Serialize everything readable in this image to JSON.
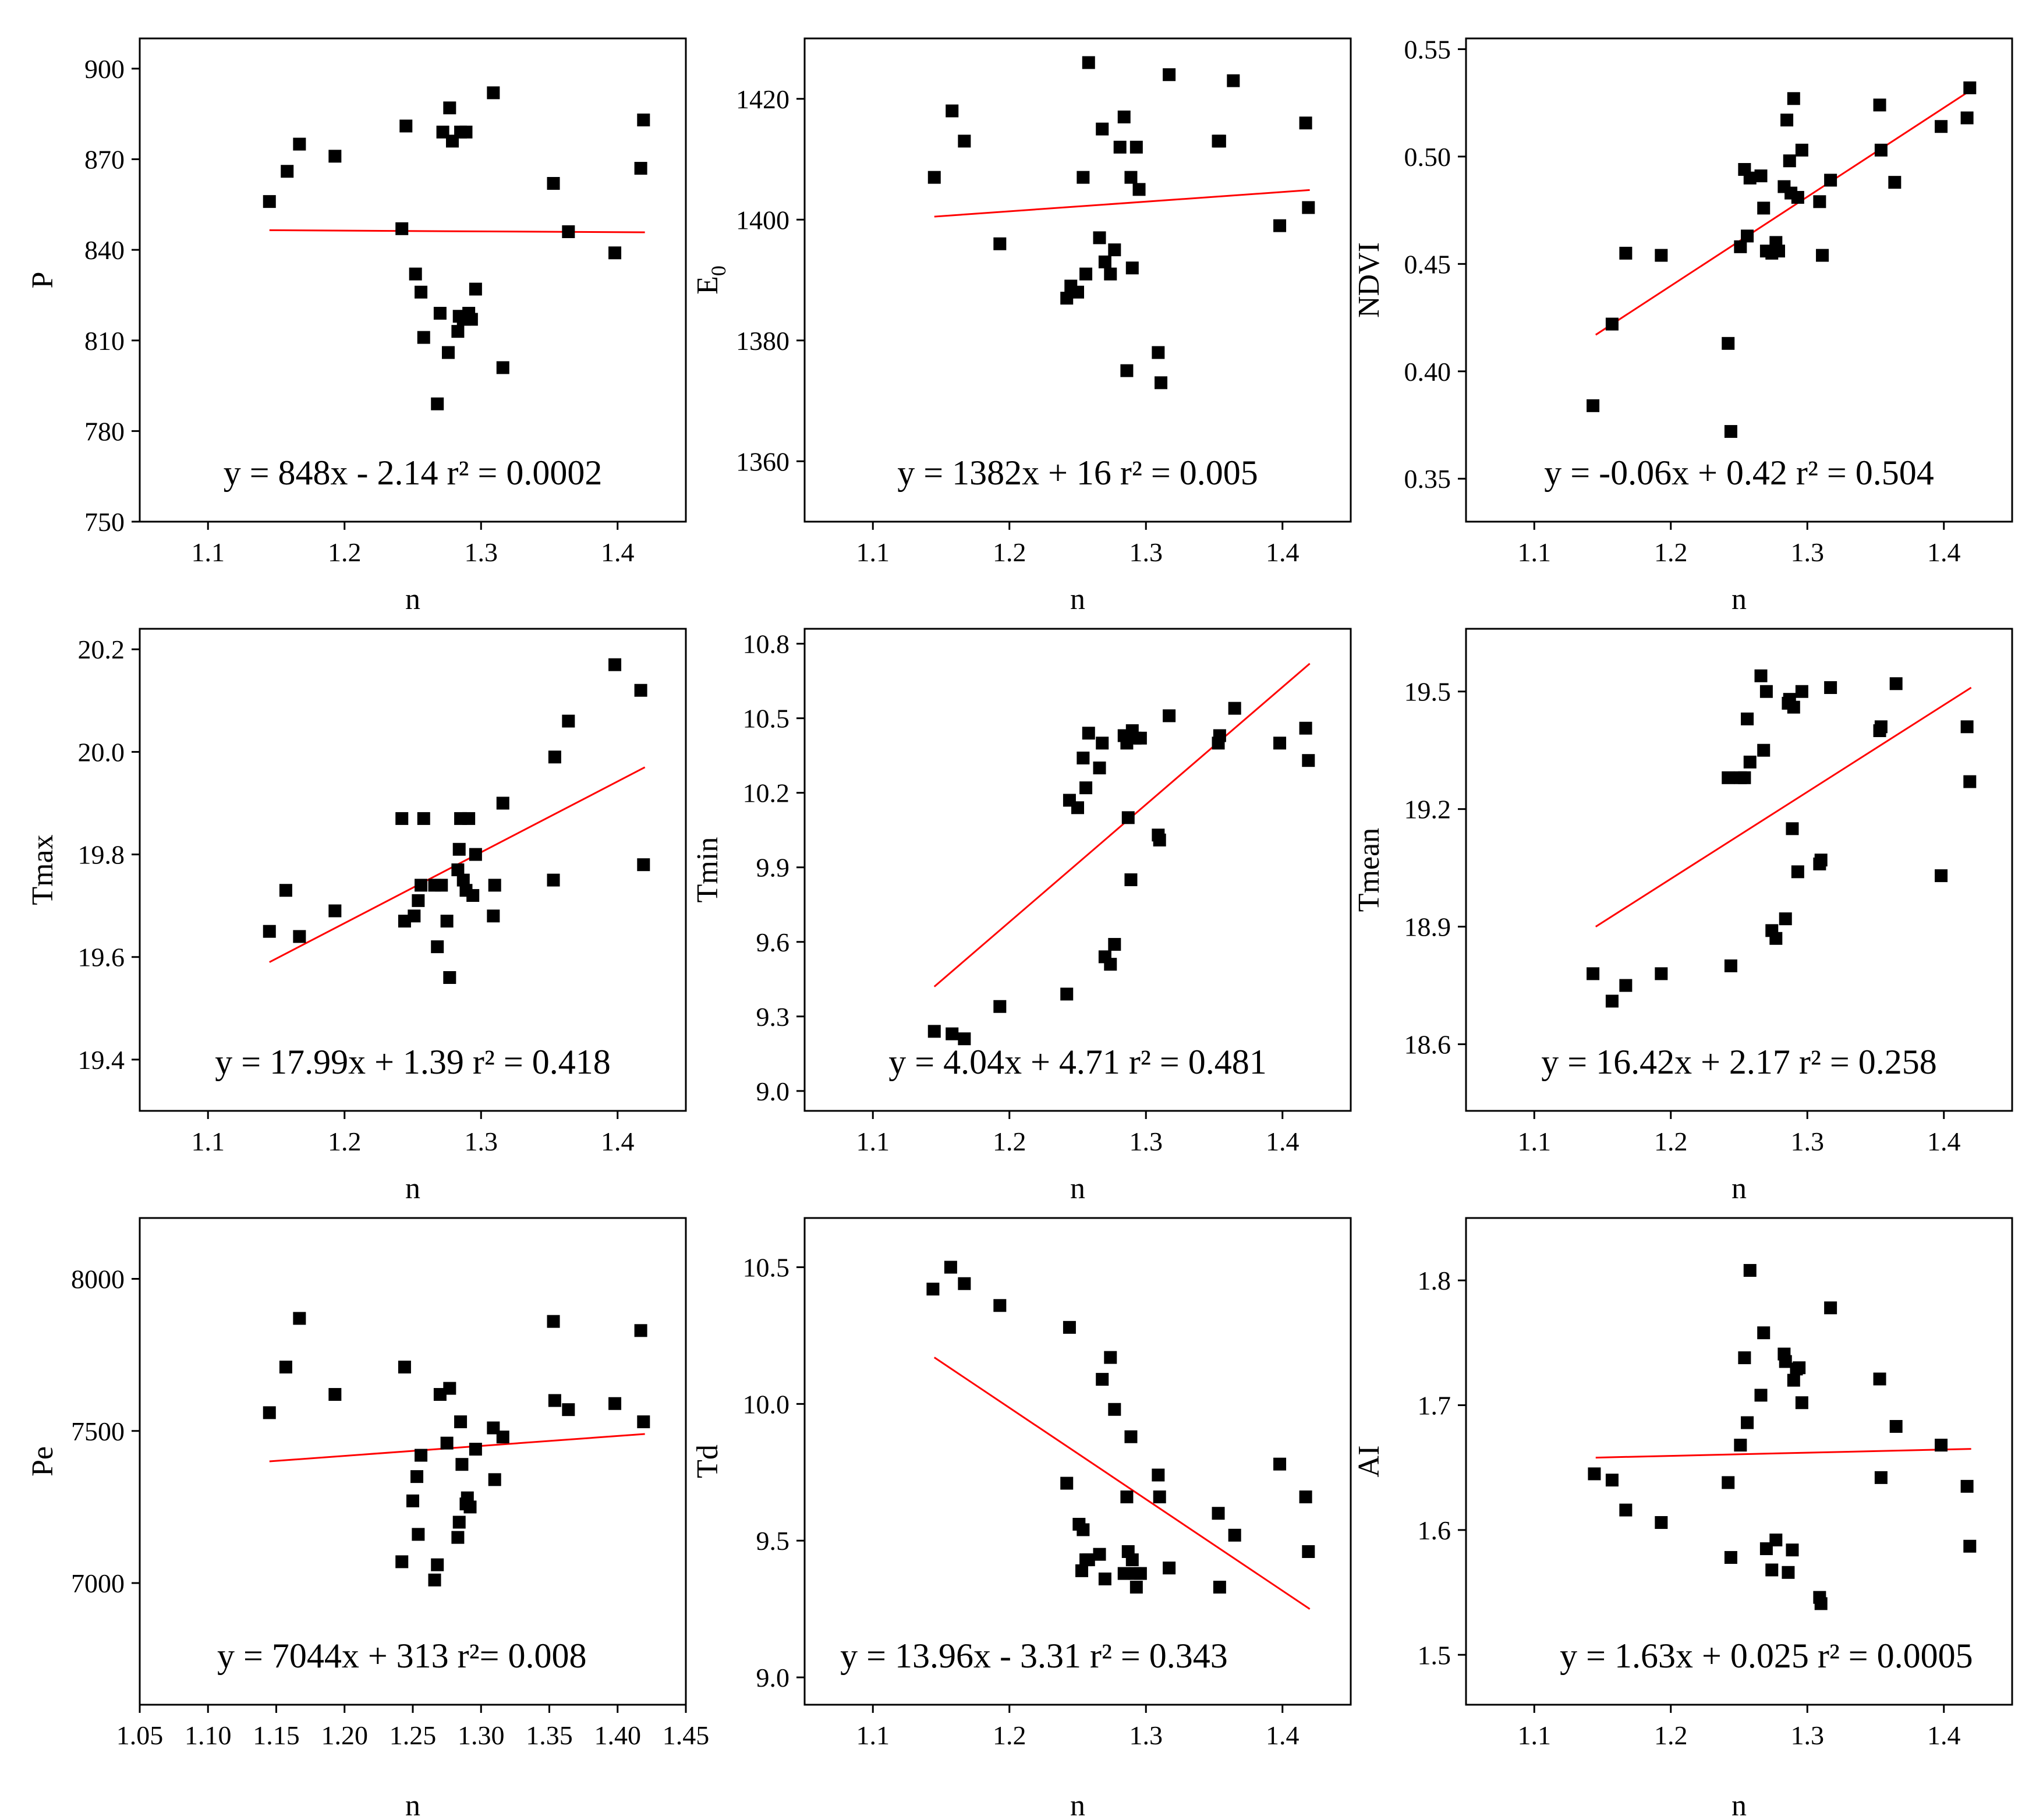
{
  "chart_data": [
    {
      "type": "scatter",
      "xlabel": "n",
      "ylabel": "P",
      "xlim": [
        1.05,
        1.45
      ],
      "ylim": [
        750,
        910
      ],
      "xticks": [
        "1.1",
        "1.2",
        "1.3",
        "1.4"
      ],
      "yticks": [
        "750",
        "780",
        "810",
        "840",
        "870",
        "900"
      ],
      "equation": "y = 848x - 2.14 r² = 0.0002",
      "trend": {
        "x": [
          1.145,
          1.42
        ],
        "y": [
          846.5,
          845.8
        ]
      },
      "points": {
        "x": [
          1.145,
          1.158,
          1.167,
          1.193,
          1.242,
          1.245,
          1.252,
          1.256,
          1.258,
          1.268,
          1.27,
          1.272,
          1.276,
          1.277,
          1.279,
          1.283,
          1.284,
          1.285,
          1.287,
          1.288,
          1.289,
          1.291,
          1.293,
          1.296,
          1.309,
          1.316,
          1.353,
          1.364,
          1.398,
          1.417,
          1.419
        ],
        "y": [
          856,
          866,
          875,
          871,
          847,
          881,
          832,
          826,
          811,
          789,
          819,
          879,
          806,
          887,
          876,
          813,
          818,
          879,
          817,
          817,
          879,
          819,
          817,
          827,
          892,
          801,
          862,
          846,
          839,
          867,
          883
        ]
      }
    },
    {
      "type": "scatter",
      "xlabel": "n",
      "ylabel": "E0",
      "ylabel_subscript": "0",
      "ylabel_main": "E",
      "xlim": [
        1.05,
        1.45
      ],
      "ylim": [
        1350,
        1430
      ],
      "xticks": [
        "1.1",
        "1.2",
        "1.3",
        "1.4"
      ],
      "yticks": [
        "1360",
        "1380",
        "1400",
        "1420"
      ],
      "equation": "y = 1382x + 16 r² = 0.005",
      "trend": {
        "x": [
          1.145,
          1.42
        ],
        "y": [
          1400.5,
          1404.9
        ]
      },
      "points": {
        "x": [
          1.145,
          1.158,
          1.167,
          1.193,
          1.242,
          1.245,
          1.25,
          1.254,
          1.256,
          1.258,
          1.266,
          1.268,
          1.27,
          1.274,
          1.277,
          1.281,
          1.284,
          1.286,
          1.289,
          1.29,
          1.293,
          1.295,
          1.309,
          1.311,
          1.317,
          1.353,
          1.354,
          1.364,
          1.398,
          1.417,
          1.419
        ],
        "y": [
          1407,
          1418,
          1413,
          1396,
          1387,
          1389,
          1388,
          1407,
          1391,
          1426,
          1397,
          1415,
          1393,
          1391,
          1395,
          1412,
          1417,
          1375,
          1407,
          1392,
          1412,
          1405,
          1378,
          1373,
          1424,
          1413,
          1413,
          1423,
          1399,
          1416,
          1402
        ]
      }
    },
    {
      "type": "scatter",
      "xlabel": "n",
      "ylabel": "NDVI",
      "xlim": [
        1.05,
        1.45
      ],
      "ylim": [
        0.33,
        0.555
      ],
      "xticks": [
        "1.1",
        "1.2",
        "1.3",
        "1.4"
      ],
      "yticks": [
        "0.35",
        "0.40",
        "0.45",
        "0.50",
        "0.55"
      ],
      "equation": "y = -0.06x + 0.42 r² = 0.504",
      "trend": {
        "x": [
          1.145,
          1.42
        ],
        "y": [
          0.417,
          0.531
        ]
      },
      "points": {
        "x": [
          1.143,
          1.157,
          1.167,
          1.193,
          1.242,
          1.244,
          1.251,
          1.254,
          1.256,
          1.258,
          1.266,
          1.268,
          1.27,
          1.274,
          1.277,
          1.279,
          1.283,
          1.285,
          1.287,
          1.288,
          1.29,
          1.293,
          1.296,
          1.309,
          1.311,
          1.317,
          1.353,
          1.354,
          1.364,
          1.398,
          1.417,
          1.419
        ],
        "y": [
          0.384,
          0.422,
          0.455,
          0.454,
          0.413,
          0.372,
          0.458,
          0.494,
          0.463,
          0.49,
          0.491,
          0.476,
          0.456,
          0.455,
          0.46,
          0.456,
          0.486,
          0.517,
          0.498,
          0.483,
          0.527,
          0.481,
          0.503,
          0.479,
          0.454,
          0.489,
          0.524,
          0.503,
          0.488,
          0.514,
          0.518,
          0.532
        ]
      }
    },
    {
      "type": "scatter",
      "xlabel": "n",
      "ylabel": "Tmax",
      "xlim": [
        1.05,
        1.45
      ],
      "ylim": [
        19.3,
        20.24
      ],
      "xticks": [
        "1.1",
        "1.2",
        "1.3",
        "1.4"
      ],
      "yticks": [
        "19.4",
        "19.6",
        "19.8",
        "20.0",
        "20.2"
      ],
      "equation": "y = 17.99x + 1.39 r² = 0.418",
      "trend": {
        "x": [
          1.145,
          1.42
        ],
        "y": [
          19.59,
          19.97
        ]
      },
      "points": {
        "x": [
          1.145,
          1.157,
          1.167,
          1.193,
          1.242,
          1.244,
          1.251,
          1.254,
          1.256,
          1.258,
          1.266,
          1.268,
          1.271,
          1.275,
          1.277,
          1.283,
          1.284,
          1.285,
          1.287,
          1.289,
          1.291,
          1.294,
          1.296,
          1.309,
          1.31,
          1.316,
          1.353,
          1.354,
          1.364,
          1.398,
          1.417,
          1.419
        ],
        "y": [
          19.65,
          19.73,
          19.64,
          19.69,
          19.87,
          19.67,
          19.68,
          19.71,
          19.74,
          19.87,
          19.74,
          19.62,
          19.74,
          19.67,
          19.56,
          19.77,
          19.81,
          19.87,
          19.75,
          19.73,
          19.87,
          19.72,
          19.8,
          19.68,
          19.74,
          19.9,
          19.75,
          19.99,
          20.06,
          20.17,
          20.12,
          19.78
        ]
      }
    },
    {
      "type": "scatter",
      "xlabel": "n",
      "ylabel": "Tmin",
      "xlim": [
        1.05,
        1.45
      ],
      "ylim": [
        8.92,
        10.86
      ],
      "xticks": [
        "1.1",
        "1.2",
        "1.3",
        "1.4"
      ],
      "yticks": [
        "9.0",
        "9.3",
        "9.6",
        "9.9",
        "10.2",
        "10.5",
        "10.8"
      ],
      "equation": "y = 4.04x + 4.71 r² = 0.481",
      "trend": {
        "x": [
          1.145,
          1.42
        ],
        "y": [
          9.42,
          10.72
        ]
      },
      "points": {
        "x": [
          1.145,
          1.158,
          1.167,
          1.193,
          1.242,
          1.244,
          1.25,
          1.254,
          1.256,
          1.258,
          1.266,
          1.268,
          1.27,
          1.274,
          1.277,
          1.284,
          1.286,
          1.287,
          1.289,
          1.29,
          1.292,
          1.296,
          1.309,
          1.31,
          1.317,
          1.353,
          1.354,
          1.365,
          1.398,
          1.417,
          1.419
        ],
        "y": [
          9.24,
          9.23,
          9.21,
          9.34,
          9.39,
          10.17,
          10.14,
          10.34,
          10.22,
          10.44,
          10.3,
          10.4,
          9.54,
          9.51,
          9.59,
          10.43,
          10.4,
          10.1,
          9.85,
          10.45,
          10.42,
          10.42,
          10.03,
          10.01,
          10.51,
          10.4,
          10.43,
          10.54,
          10.4,
          10.46,
          10.33
        ]
      }
    },
    {
      "type": "scatter",
      "xlabel": "n",
      "ylabel": "Tmean",
      "xlim": [
        1.05,
        1.45
      ],
      "ylim": [
        18.43,
        19.66
      ],
      "xticks": [
        "1.1",
        "1.2",
        "1.3",
        "1.4"
      ],
      "yticks": [
        "18.6",
        "18.9",
        "19.2",
        "19.5"
      ],
      "equation": "y = 16.42x + 2.17 r² = 0.258",
      "trend": {
        "x": [
          1.145,
          1.42
        ],
        "y": [
          18.9,
          19.51
        ]
      },
      "points": {
        "x": [
          1.143,
          1.157,
          1.167,
          1.193,
          1.242,
          1.244,
          1.251,
          1.254,
          1.256,
          1.258,
          1.266,
          1.268,
          1.27,
          1.274,
          1.277,
          1.284,
          1.286,
          1.287,
          1.289,
          1.29,
          1.293,
          1.296,
          1.309,
          1.31,
          1.317,
          1.353,
          1.354,
          1.365,
          1.398,
          1.417,
          1.419
        ],
        "y": [
          18.78,
          18.71,
          18.75,
          18.78,
          19.28,
          18.8,
          19.28,
          19.28,
          19.43,
          19.32,
          19.54,
          19.35,
          19.5,
          18.89,
          18.87,
          18.92,
          19.47,
          19.48,
          19.15,
          19.46,
          19.04,
          19.5,
          19.06,
          19.07,
          19.51,
          19.4,
          19.41,
          19.52,
          19.03,
          19.41,
          19.27
        ]
      }
    },
    {
      "type": "scatter",
      "xlabel": "n",
      "ylabel": "Pe",
      "xlim": [
        1.05,
        1.45
      ],
      "ylim": [
        6600,
        8200
      ],
      "xticks": [
        "1.05",
        "1.10",
        "1.15",
        "1.20",
        "1.25",
        "1.30",
        "1.35",
        "1.40",
        "1.45"
      ],
      "yticks": [
        "7000",
        "7500",
        "8000"
      ],
      "equation": "y = 7044x + 313 r²= 0.008",
      "trend": {
        "x": [
          1.145,
          1.42
        ],
        "y": [
          7400,
          7490
        ]
      },
      "points": {
        "x": [
          1.145,
          1.157,
          1.167,
          1.193,
          1.242,
          1.244,
          1.25,
          1.253,
          1.254,
          1.256,
          1.266,
          1.268,
          1.27,
          1.275,
          1.277,
          1.283,
          1.284,
          1.285,
          1.286,
          1.289,
          1.29,
          1.292,
          1.296,
          1.309,
          1.31,
          1.316,
          1.353,
          1.354,
          1.364,
          1.398,
          1.417,
          1.419
        ],
        "y": [
          7560,
          7710,
          7870,
          7620,
          7070,
          7710,
          7270,
          7350,
          7160,
          7420,
          7010,
          7060,
          7620,
          7460,
          7640,
          7150,
          7200,
          7530,
          7390,
          7260,
          7280,
          7250,
          7440,
          7510,
          7340,
          7480,
          7860,
          7600,
          7570,
          7590,
          7830,
          7530
        ]
      }
    },
    {
      "type": "scatter",
      "xlabel": "n",
      "ylabel": "Td",
      "xlim": [
        1.05,
        1.45
      ],
      "ylim": [
        8.9,
        10.68
      ],
      "xticks": [
        "1.1",
        "1.2",
        "1.3",
        "1.4"
      ],
      "yticks": [
        "9.0",
        "9.5",
        "10.0",
        "10.5"
      ],
      "equation": "y = 13.96x - 3.31 r² = 0.343",
      "trend": {
        "x": [
          1.145,
          1.42
        ],
        "y": [
          10.17,
          9.25
        ]
      },
      "points": {
        "x": [
          1.144,
          1.157,
          1.167,
          1.193,
          1.242,
          1.244,
          1.251,
          1.253,
          1.254,
          1.256,
          1.258,
          1.266,
          1.268,
          1.27,
          1.274,
          1.277,
          1.284,
          1.286,
          1.287,
          1.289,
          1.29,
          1.292,
          1.293,
          1.296,
          1.309,
          1.31,
          1.317,
          1.353,
          1.354,
          1.365,
          1.398,
          1.417,
          1.419
        ],
        "y": [
          10.42,
          10.5,
          10.44,
          10.36,
          9.71,
          10.28,
          9.56,
          9.39,
          9.54,
          9.43,
          9.43,
          9.45,
          10.09,
          9.36,
          10.17,
          9.98,
          9.38,
          9.66,
          9.46,
          9.88,
          9.43,
          9.38,
          9.33,
          9.38,
          9.74,
          9.66,
          9.4,
          9.6,
          9.33,
          9.52,
          9.78,
          9.66,
          9.46
        ]
      }
    },
    {
      "type": "scatter",
      "xlabel": "n",
      "ylabel": "AI",
      "xlim": [
        1.05,
        1.45
      ],
      "ylim": [
        1.46,
        1.85
      ],
      "xticks": [
        "1.1",
        "1.2",
        "1.3",
        "1.4"
      ],
      "yticks": [
        "1.5",
        "1.6",
        "1.7",
        "1.8"
      ],
      "equation": "y = 1.63x + 0.025 r² = 0.0005",
      "trend": {
        "x": [
          1.145,
          1.42
        ],
        "y": [
          1.658,
          1.665
        ]
      },
      "points": {
        "x": [
          1.144,
          1.157,
          1.167,
          1.193,
          1.242,
          1.244,
          1.251,
          1.254,
          1.256,
          1.258,
          1.266,
          1.268,
          1.27,
          1.274,
          1.277,
          1.283,
          1.284,
          1.286,
          1.289,
          1.29,
          1.292,
          1.294,
          1.296,
          1.309,
          1.31,
          1.317,
          1.353,
          1.354,
          1.365,
          1.398,
          1.417,
          1.419
        ],
        "y": [
          1.645,
          1.64,
          1.616,
          1.606,
          1.638,
          1.578,
          1.668,
          1.738,
          1.686,
          1.808,
          1.708,
          1.758,
          1.585,
          1.568,
          1.592,
          1.741,
          1.735,
          1.566,
          1.584,
          1.72,
          1.729,
          1.73,
          1.702,
          1.546,
          1.541,
          1.778,
          1.721,
          1.642,
          1.683,
          1.668,
          1.635,
          1.587
        ]
      }
    }
  ]
}
